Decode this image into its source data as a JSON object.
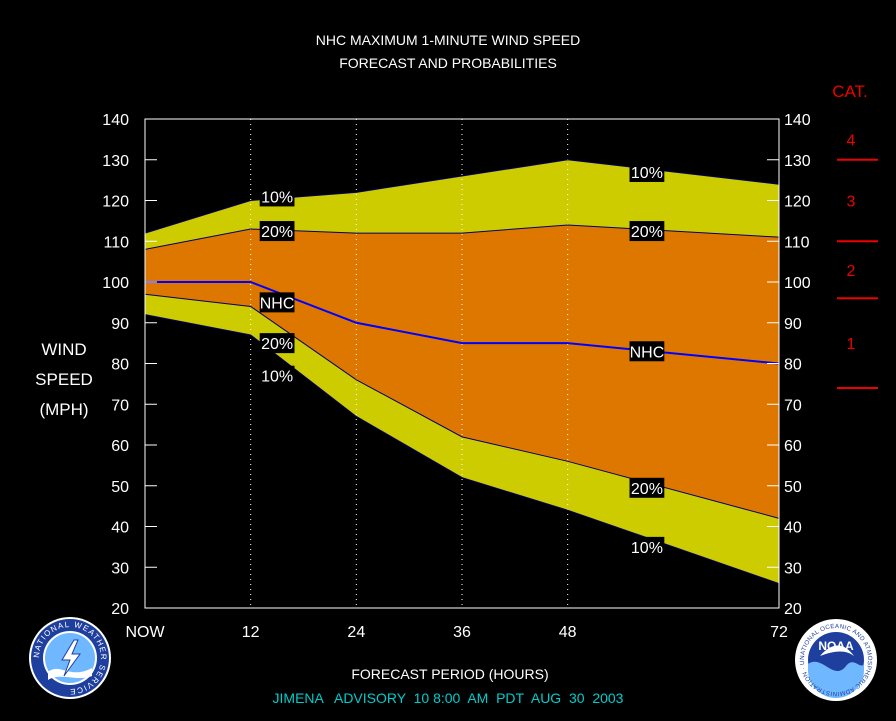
{
  "chart_data": {
    "type": "area",
    "title": "NHC MAXIMUM 1-MINUTE WIND SPEED",
    "subtitle": "FORECAST AND PROBABILITIES",
    "xlabel": "FORECAST PERIOD (HOURS)",
    "ylabel": [
      "WIND",
      "SPEED",
      "(MPH)"
    ],
    "ylim": [
      20,
      140
    ],
    "xlim": [
      0,
      72
    ],
    "y_ticks": [
      20,
      30,
      40,
      50,
      60,
      70,
      80,
      90,
      100,
      110,
      120,
      130,
      140
    ],
    "x_ticks": [
      {
        "value": 0,
        "label": "NOW"
      },
      {
        "value": 12,
        "label": "12"
      },
      {
        "value": 24,
        "label": "24"
      },
      {
        "value": 36,
        "label": "36"
      },
      {
        "value": 48,
        "label": "48"
      },
      {
        "value": 72,
        "label": "72"
      }
    ],
    "x_gridlines": [
      12,
      24,
      36,
      48
    ],
    "bands": {
      "upper_10": {
        "x": [
          0,
          12,
          24,
          36,
          48,
          72
        ],
        "y": [
          112,
          120,
          122,
          126,
          130,
          124
        ]
      },
      "upper_20": {
        "x": [
          0,
          12,
          24,
          36,
          48,
          72
        ],
        "y": [
          108,
          113,
          112,
          112,
          114,
          111
        ]
      },
      "lower_20": {
        "x": [
          0,
          12,
          24,
          36,
          48,
          72
        ],
        "y": [
          97,
          94,
          76,
          62,
          56,
          42
        ]
      },
      "lower_10": {
        "x": [
          0,
          12,
          24,
          36,
          48,
          72
        ],
        "y": [
          92,
          87,
          67,
          52,
          44,
          26
        ]
      }
    },
    "nhc_forecast": {
      "x": [
        0,
        12,
        24,
        36,
        48,
        72
      ],
      "y": [
        100,
        100,
        90,
        85,
        85,
        80
      ]
    },
    "labels": [
      {
        "text": "10%",
        "x": 15,
        "y": 121
      },
      {
        "text": "20%",
        "x": 15,
        "y": 112.5
      },
      {
        "text": "NHC",
        "x": 15,
        "y": 95
      },
      {
        "text": "20%",
        "x": 15,
        "y": 85
      },
      {
        "text": "10%",
        "x": 15,
        "y": 77
      },
      {
        "text": "10%",
        "x": 57,
        "y": 127
      },
      {
        "text": "20%",
        "x": 57,
        "y": 112.5
      },
      {
        "text": "NHC",
        "x": 57,
        "y": 83
      },
      {
        "text": "20%",
        "x": 57,
        "y": 49.5
      },
      {
        "text": "10%",
        "x": 57,
        "y": 35
      }
    ],
    "category": {
      "title": "CAT.",
      "levels": [
        {
          "label": "4",
          "y": 135
        },
        {
          "label": "3",
          "y": 120
        },
        {
          "label": "2",
          "y": 103
        },
        {
          "label": "1",
          "y": 85
        }
      ],
      "boundaries": [
        130,
        110,
        96,
        74
      ]
    },
    "colors": {
      "band_10": "#cccc00",
      "band_20": "#dd7700",
      "nhc_line": "#0000ff",
      "category": "#ee0000",
      "footer": "#00cccc",
      "label_bg": "#000000"
    }
  },
  "footer": {
    "advisory": "JIMENA   ADVISORY  10 8:00  AM  PDT  AUG  30  2003"
  },
  "logos": {
    "left": {
      "text": "NATIONAL WEATHER SERVICE"
    },
    "right": {
      "center": "NOAA",
      "ring": "NATIONAL OCEANIC AND ATMOSPHERIC ADMINISTRATION · U.S. DEPARTMENT OF COMMERCE"
    }
  }
}
